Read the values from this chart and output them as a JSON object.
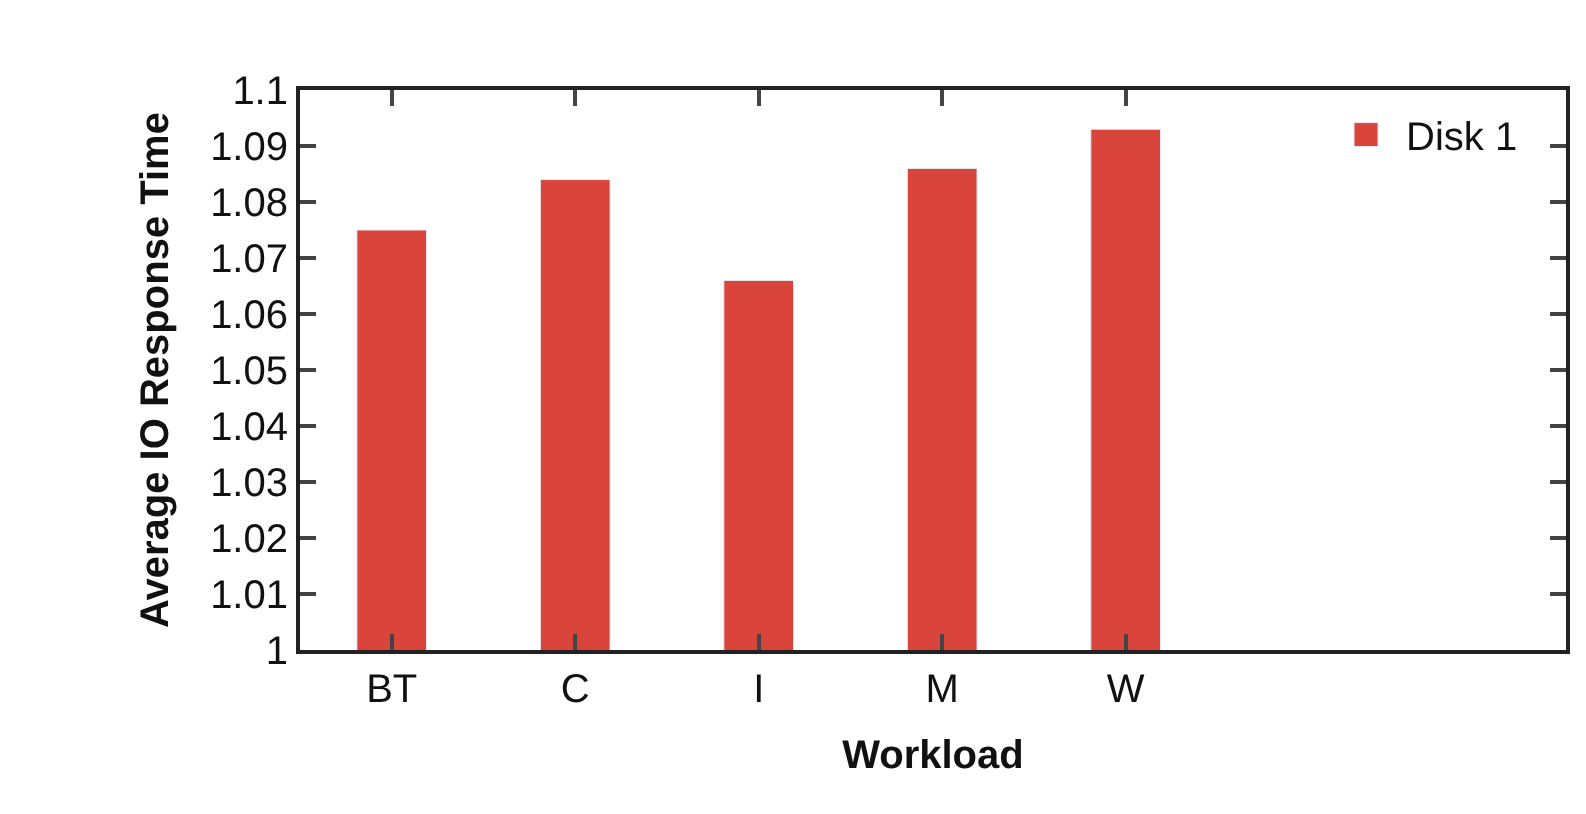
{
  "chart_data": {
    "type": "bar",
    "xlabel": "Workload",
    "ylabel": "Average IO Response Time",
    "categories": [
      "BT",
      "C",
      "I",
      "M",
      "W"
    ],
    "series": [
      {
        "name": "Disk 1",
        "color": "#d9453a",
        "values": [
          1.075,
          1.084,
          1.066,
          1.086,
          1.093
        ]
      }
    ],
    "ylim": [
      1,
      1.1
    ],
    "yticks": [
      1,
      1.01,
      1.02,
      1.03,
      1.04,
      1.05,
      1.06,
      1.07,
      1.08,
      1.09,
      1.1
    ],
    "legend": "top right"
  }
}
